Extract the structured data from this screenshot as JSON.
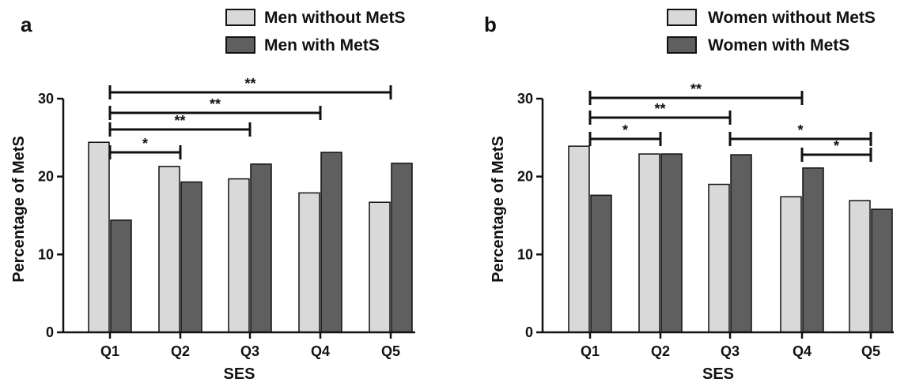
{
  "chart_data": [
    {
      "type": "bar",
      "panel_label": "a",
      "categories": [
        "Q1",
        "Q2",
        "Q3",
        "Q4",
        "Q5"
      ],
      "series": [
        {
          "name": "Men without MetS",
          "values": [
            24.4,
            21.3,
            19.7,
            17.9,
            16.7
          ],
          "color": "#d9d9d9"
        },
        {
          "name": "Men with MetS",
          "values": [
            14.4,
            19.3,
            21.6,
            23.1,
            21.7
          ],
          "color": "#5f5f5f"
        }
      ],
      "xlabel": "SES",
      "ylabel": "Percentage of MetS",
      "ylim": [
        0,
        30
      ],
      "yticks": [
        "0",
        "10",
        "20",
        "30"
      ],
      "legend_position": "top-right",
      "grid": false,
      "significance_brackets": [
        {
          "from": "Q1",
          "to": "Q2",
          "label": "*"
        },
        {
          "from": "Q1",
          "to": "Q3",
          "label": "**"
        },
        {
          "from": "Q1",
          "to": "Q4",
          "label": "**"
        },
        {
          "from": "Q1",
          "to": "Q5",
          "label": "**"
        }
      ]
    },
    {
      "type": "bar",
      "panel_label": "b",
      "categories": [
        "Q1",
        "Q2",
        "Q3",
        "Q4",
        "Q5"
      ],
      "series": [
        {
          "name": "Women without MetS",
          "values": [
            23.9,
            22.9,
            19.0,
            17.4,
            16.9
          ],
          "color": "#d9d9d9"
        },
        {
          "name": "Women with MetS",
          "values": [
            17.6,
            22.9,
            22.8,
            21.1,
            15.8
          ],
          "color": "#5f5f5f"
        }
      ],
      "xlabel": "SES",
      "ylabel": "Percentage of MetS",
      "ylim": [
        0,
        30
      ],
      "yticks": [
        "0",
        "10",
        "20",
        "30"
      ],
      "legend_position": "top-right",
      "grid": false,
      "significance_brackets": [
        {
          "from": "Q1",
          "to": "Q2",
          "label": "*"
        },
        {
          "from": "Q1",
          "to": "Q3",
          "label": "**"
        },
        {
          "from": "Q1",
          "to": "Q4",
          "label": "**"
        },
        {
          "from": "Q3",
          "to": "Q5",
          "label": "*"
        },
        {
          "from": "Q4",
          "to": "Q5",
          "label": "*"
        }
      ]
    }
  ]
}
